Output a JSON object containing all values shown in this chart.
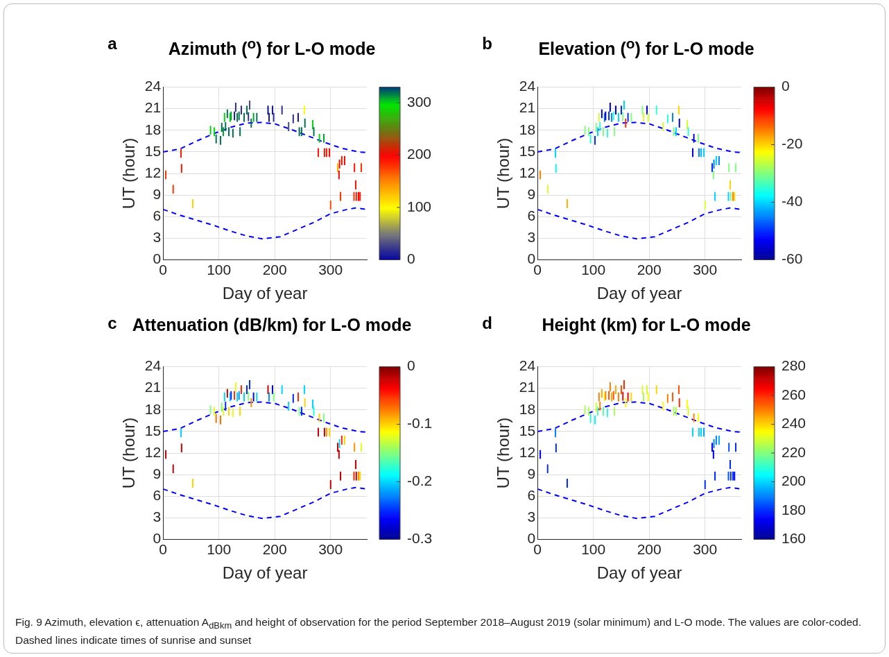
{
  "chart_data": [
    {
      "type": "bar",
      "title": "Azimuth ($^{o}$) for L-O mode",
      "xlabel": "Day of year",
      "ylabel": "UT (hour)",
      "annotations": [
        "a",
        "Fig. 9  Azimuth, elevation ϵ, attenuation A$_{dBkm}$ and height of observation for the period September 2018–August 2019 (solar minimum) and L-O mode. The values are color-coded. Dashed lines indicate times of sunrise and sunset"
      ],
      "xlim": [
        0,
        365
      ],
      "xticks": [
        0,
        100,
        200,
        300
      ],
      "ylim": [
        0,
        24
      ],
      "yticks": [
        0,
        3,
        6,
        9,
        12,
        15,
        18,
        21,
        24
      ],
      "grid": true,
      "legend": false,
      "clim": [
        0,
        330
      ],
      "cticks": [
        0,
        100,
        200,
        300
      ],
      "series": [
        {
          "x": [
            5,
            18,
            32,
            33,
            53,
            85,
            92,
            95,
            103,
            105,
            108,
            110,
            112,
            115,
            118,
            120,
            122,
            125,
            128,
            130,
            133,
            136,
            138,
            140,
            145,
            150,
            153,
            155,
            158,
            162,
            168,
            188,
            190,
            196,
            198,
            213,
            225,
            233,
            242,
            244,
            248,
            253,
            254,
            268,
            270,
            278,
            280,
            288,
            289,
            293,
            298,
            300,
            313,
            315,
            316,
            318,
            320,
            325,
            342,
            343,
            345,
            346,
            350,
            353,
            355
          ],
          "base": [
            11.2,
            9.2,
            14.2,
            12.1,
            7.2,
            17.4,
            17.2,
            16.2,
            16.0,
            17.8,
            17.2,
            19.2,
            17.9,
            19.7,
            17.2,
            19.2,
            19.4,
            17.0,
            19.4,
            20.6,
            19.2,
            19.4,
            17.2,
            20.2,
            19.2,
            20.2,
            19.3,
            20.9,
            18.4,
            19.2,
            19.2,
            20.2,
            19.2,
            20.2,
            19.2,
            20.2,
            17.9,
            19.0,
            19.2,
            17.2,
            17.2,
            20.2,
            18.4,
            18.2,
            17.2,
            14.3,
            16.3,
            16.3,
            14.3,
            14.3,
            14.3,
            7.0,
            12.2,
            11.2,
            12.7,
            8.2,
            13.2,
            13.2,
            8.2,
            12.2,
            9.8,
            8.2,
            8.2,
            8.2,
            12.2
          ],
          "values": [
            1.2,
            1.2,
            1.2,
            1.2,
            1.2,
            1.2,
            1.2,
            1.2,
            1.2,
            1.2,
            1.2,
            1.2,
            1.2,
            1.2,
            1.2,
            1.2,
            1.2,
            1.2,
            1.2,
            1.2,
            1.2,
            1.2,
            1.2,
            1.2,
            1.2,
            1.2,
            1.2,
            1.2,
            1.2,
            1.2,
            1.2,
            1.2,
            1.2,
            1.2,
            1.2,
            1.2,
            1.2,
            1.2,
            1.2,
            1.2,
            1.2,
            1.2,
            1.2,
            1.2,
            1.2,
            1.2,
            1.2,
            1.2,
            1.2,
            1.2,
            1.2,
            1.2,
            1.2,
            1.2,
            1.2,
            1.2,
            1.2,
            1.2,
            1.2,
            1.2,
            1.2,
            1.2,
            1.2,
            1.2,
            1.2
          ],
          "cvalues": [
            180,
            180,
            190,
            190,
            120,
            300,
            300,
            320,
            320,
            320,
            310,
            300,
            320,
            320,
            320,
            300,
            310,
            320,
            10,
            20,
            320,
            320,
            320,
            20,
            320,
            320,
            20,
            30,
            320,
            310,
            320,
            5,
            10,
            10,
            20,
            20,
            30,
            20,
            10,
            320,
            320,
            100,
            320,
            300,
            320,
            190,
            300,
            310,
            190,
            190,
            195,
            170,
            130,
            200,
            200,
            180,
            210,
            200,
            180,
            190,
            190,
            190,
            200,
            190,
            180
          ],
          "colors": [
            "#ff3300",
            "#ff3300",
            "#ff1700",
            "#ff1700",
            "#ffce00",
            "#00d60b",
            "#00d60b",
            "#006f54",
            "#006f54",
            "#006f54",
            "#00a32f",
            "#00d60b",
            "#006f54",
            "#006f54",
            "#006f54",
            "#00d60b",
            "#00a32f",
            "#006f54",
            "#181898",
            "#303090",
            "#006f54",
            "#006f54",
            "#006f54",
            "#303090",
            "#006f54",
            "#006f54",
            "#303090",
            "#494988",
            "#006f54",
            "#00a32f",
            "#006f54",
            "#0c0c9c",
            "#181898",
            "#181898",
            "#303090",
            "#303090",
            "#494988",
            "#303090",
            "#181898",
            "#006f54",
            "#006f54",
            "#fffd00",
            "#006f54",
            "#00d60b",
            "#006f54",
            "#ff1700",
            "#00d60b",
            "#00a32f",
            "#ff1700",
            "#ff1700",
            "#ff0800",
            "#ff4f00",
            "#ffb700",
            "#f90501",
            "#f90501",
            "#ff3300",
            "#dc1d05",
            "#f90501",
            "#ff3300",
            "#ff1700",
            "#ff1700",
            "#ff1700",
            "#f90501",
            "#ff1700",
            "#ff3300"
          ]
        },
        {
          "type": "line",
          "color": "#0000ff",
          "line_style": "dashed",
          "marker": "none",
          "x": [
            0,
            30,
            60,
            90,
            120,
            150,
            175,
            200,
            230,
            260,
            290,
            320,
            350,
            365
          ],
          "values": [
            15.0,
            15.4,
            16.5,
            17.5,
            18.4,
            19.0,
            19.1,
            18.9,
            18.1,
            17.2,
            16.3,
            15.5,
            15.0,
            14.9
          ]
        },
        {
          "type": "line",
          "color": "#0000ff",
          "line_style": "dashed",
          "marker": "none",
          "x": [
            0,
            30,
            60,
            90,
            120,
            150,
            178,
            210,
            240,
            270,
            300,
            330,
            345,
            365
          ],
          "values": [
            7.0,
            6.2,
            5.5,
            4.8,
            4.0,
            3.3,
            2.9,
            3.2,
            4.2,
            5.2,
            6.4,
            7.0,
            7.2,
            7.0
          ]
        }
      ]
    },
    {
      "type": "bar",
      "title": "Elevation ($^{o}$) for L-O mode",
      "xlabel": "Day of year",
      "ylabel": "UT (hour)",
      "annotations": [
        "b"
      ],
      "xlim": [
        0,
        365
      ],
      "xticks": [
        0,
        100,
        200,
        300
      ],
      "ylim": [
        0,
        24
      ],
      "yticks": [
        0,
        3,
        6,
        9,
        12,
        15,
        18,
        21,
        24
      ],
      "grid": true,
      "legend": false,
      "clim": [
        -60,
        0
      ],
      "cticks": [
        -60,
        -40,
        -20,
        0
      ],
      "series": [
        {
          "x": [
            5,
            18,
            32,
            33,
            53,
            85,
            92,
            95,
            103,
            105,
            108,
            110,
            112,
            115,
            118,
            120,
            122,
            125,
            128,
            130,
            133,
            136,
            138,
            140,
            145,
            150,
            153,
            155,
            158,
            162,
            168,
            188,
            190,
            196,
            198,
            213,
            225,
            233,
            242,
            244,
            248,
            253,
            254,
            268,
            270,
            278,
            280,
            288,
            289,
            293,
            298,
            300,
            313,
            315,
            316,
            318,
            320,
            325,
            342,
            343,
            345,
            346,
            350,
            353,
            355
          ],
          "base": [
            11.2,
            9.2,
            14.2,
            12.1,
            7.2,
            17.4,
            17.2,
            16.2,
            16.0,
            17.8,
            17.2,
            19.2,
            17.9,
            19.7,
            17.2,
            19.2,
            19.4,
            17.0,
            19.4,
            20.6,
            19.2,
            19.4,
            17.2,
            20.2,
            19.2,
            20.2,
            19.3,
            20.9,
            18.4,
            19.2,
            19.2,
            20.2,
            19.2,
            20.2,
            19.2,
            20.2,
            17.9,
            19.0,
            19.2,
            17.2,
            17.2,
            20.2,
            18.4,
            18.2,
            17.2,
            14.3,
            16.3,
            16.3,
            14.3,
            14.3,
            14.3,
            7.0,
            12.2,
            11.2,
            12.7,
            8.2,
            13.2,
            13.2,
            8.2,
            12.2,
            9.8,
            8.2,
            8.2,
            8.2,
            12.2
          ],
          "values": [
            1.2,
            1.2,
            1.2,
            1.2,
            1.2,
            1.2,
            1.2,
            1.2,
            1.2,
            1.2,
            1.2,
            1.2,
            1.2,
            1.2,
            1.2,
            1.2,
            1.2,
            1.2,
            1.2,
            1.2,
            1.2,
            1.2,
            1.2,
            1.2,
            1.2,
            1.2,
            1.2,
            1.2,
            1.2,
            1.2,
            1.2,
            1.2,
            1.2,
            1.2,
            1.2,
            1.2,
            1.2,
            1.2,
            1.2,
            1.2,
            1.2,
            1.2,
            1.2,
            1.2,
            1.2,
            1.2,
            1.2,
            1.2,
            1.2,
            1.2,
            1.2,
            1.2,
            1.2,
            1.2,
            1.2,
            1.2,
            1.2,
            1.2,
            1.2,
            1.2,
            1.2,
            1.2,
            1.2,
            1.2,
            1.2
          ],
          "cvalues": [
            -15,
            -25,
            -40,
            -37,
            -18,
            -30,
            -30,
            -35,
            -50,
            -30,
            -40,
            -25,
            -35,
            -55,
            -30,
            -45,
            -55,
            -35,
            -50,
            -55,
            -45,
            -35,
            -30,
            -55,
            -40,
            -50,
            -30,
            -40,
            -10,
            -50,
            -30,
            -30,
            -25,
            -55,
            -25,
            -35,
            -25,
            -35,
            -45,
            -30,
            -40,
            -20,
            -55,
            -25,
            -35,
            -55,
            -55,
            -30,
            -45,
            -42,
            -40,
            -25,
            -50,
            -30,
            -45,
            -40,
            -40,
            -45,
            -40,
            -30,
            -20,
            -30,
            -15,
            -20,
            -30
          ],
          "colors": [
            "#ff8000",
            "#d5ff2b",
            "#00d5ff",
            "#09fff7",
            "#ffb300",
            "#80ff80",
            "#80ff80",
            "#2bffd5",
            "#002bff",
            "#80ff80",
            "#00d5ff",
            "#d5ff2b",
            "#2bffd5",
            "#0000da",
            "#80ff80",
            "#0080ff",
            "#0000da",
            "#2bffd5",
            "#002bff",
            "#0000da",
            "#0080ff",
            "#2bffd5",
            "#80ff80",
            "#0000da",
            "#00d5ff",
            "#002bff",
            "#80ff80",
            "#00d5ff",
            "#ff2b00",
            "#002bff",
            "#80ff80",
            "#80ff80",
            "#d5ff2b",
            "#0000da",
            "#d5ff2b",
            "#2bffd5",
            "#d5ff2b",
            "#2bffd5",
            "#0080ff",
            "#80ff80",
            "#00d5ff",
            "#ffd500",
            "#0000da",
            "#d5ff2b",
            "#2bffd5",
            "#0000da",
            "#0000da",
            "#80ff80",
            "#0080ff",
            "#00b3ff",
            "#00d5ff",
            "#d5ff2b",
            "#002bff",
            "#80ff80",
            "#0080ff",
            "#00d5ff",
            "#00d5ff",
            "#0080ff",
            "#00d5ff",
            "#80ff80",
            "#ffd500",
            "#80ff80",
            "#ff8000",
            "#ffd500",
            "#80ff80"
          ]
        },
        {
          "type": "line",
          "color": "#0000ff",
          "line_style": "dashed",
          "marker": "none",
          "x": [
            0,
            30,
            60,
            90,
            120,
            150,
            175,
            200,
            230,
            260,
            290,
            320,
            350,
            365
          ],
          "values": [
            15.0,
            15.4,
            16.5,
            17.5,
            18.4,
            19.0,
            19.1,
            18.9,
            18.1,
            17.2,
            16.3,
            15.5,
            15.0,
            14.9
          ]
        },
        {
          "type": "line",
          "color": "#0000ff",
          "line_style": "dashed",
          "marker": "none",
          "x": [
            0,
            30,
            60,
            90,
            120,
            150,
            178,
            210,
            240,
            270,
            300,
            330,
            345,
            365
          ],
          "values": [
            7.0,
            6.2,
            5.5,
            4.8,
            4.0,
            3.3,
            2.9,
            3.2,
            4.2,
            5.2,
            6.4,
            7.0,
            7.2,
            7.0
          ]
        }
      ]
    },
    {
      "type": "bar",
      "title": "Attenuation (dB/km) for L-O mode",
      "xlabel": "Day of year",
      "ylabel": "UT (hour)",
      "annotations": [
        "c"
      ],
      "xlim": [
        0,
        365
      ],
      "xticks": [
        0,
        100,
        200,
        300
      ],
      "ylim": [
        0,
        24
      ],
      "yticks": [
        0,
        3,
        6,
        9,
        12,
        15,
        18,
        21,
        24
      ],
      "grid": true,
      "legend": false,
      "clim": [
        -0.3,
        0
      ],
      "cticks": [
        -0.3,
        -0.2,
        -0.1,
        0
      ],
      "series": [
        {
          "x": [
            5,
            18,
            32,
            33,
            53,
            85,
            92,
            95,
            103,
            105,
            108,
            110,
            112,
            115,
            118,
            120,
            122,
            125,
            128,
            130,
            133,
            136,
            138,
            140,
            145,
            150,
            153,
            155,
            158,
            162,
            168,
            188,
            190,
            196,
            198,
            213,
            225,
            233,
            242,
            244,
            248,
            253,
            254,
            268,
            270,
            278,
            280,
            288,
            289,
            293,
            298,
            300,
            313,
            315,
            316,
            318,
            320,
            325,
            342,
            343,
            345,
            346,
            350,
            353,
            355
          ],
          "base": [
            11.2,
            9.2,
            14.2,
            12.1,
            7.2,
            17.4,
            17.2,
            16.2,
            16.0,
            17.8,
            17.2,
            19.2,
            17.9,
            19.7,
            17.2,
            19.2,
            19.4,
            17.0,
            19.4,
            20.6,
            19.2,
            19.4,
            17.2,
            20.2,
            19.2,
            20.2,
            19.3,
            20.9,
            18.4,
            19.2,
            19.2,
            20.2,
            19.2,
            20.2,
            19.2,
            20.2,
            17.9,
            19.0,
            19.2,
            17.2,
            17.2,
            20.2,
            18.4,
            18.2,
            17.2,
            14.3,
            16.3,
            16.3,
            14.3,
            14.3,
            14.3,
            7.0,
            12.2,
            11.2,
            12.7,
            8.2,
            13.2,
            13.2,
            8.2,
            12.2,
            9.8,
            8.2,
            8.2,
            8.2,
            12.2
          ],
          "values": [
            1.2,
            1.2,
            1.2,
            1.2,
            1.2,
            1.2,
            1.2,
            1.2,
            1.2,
            1.2,
            1.2,
            1.2,
            1.2,
            1.2,
            1.2,
            1.2,
            1.2,
            1.2,
            1.2,
            1.2,
            1.2,
            1.2,
            1.2,
            1.2,
            1.2,
            1.2,
            1.2,
            1.2,
            1.2,
            1.2,
            1.2,
            1.2,
            1.2,
            1.2,
            1.2,
            1.2,
            1.2,
            1.2,
            1.2,
            1.2,
            1.2,
            1.2,
            1.2,
            1.2,
            1.2,
            1.2,
            1.2,
            1.2,
            1.2,
            1.2,
            1.2,
            1.2,
            1.2,
            1.2,
            1.2,
            1.2,
            1.2,
            1.2,
            1.2,
            1.2,
            1.2,
            1.2,
            1.2,
            1.2,
            1.2
          ],
          "cvalues": [
            -0.02,
            -0.02,
            -0.2,
            -0.02,
            -0.1,
            -0.15,
            -0.12,
            -0.07,
            -0.07,
            -0.15,
            -0.12,
            -0.2,
            -0.25,
            -0.02,
            -0.1,
            -0.2,
            -0.25,
            -0.12,
            -0.05,
            -0.12,
            -0.2,
            -0.22,
            -0.1,
            -0.05,
            -0.2,
            -0.25,
            -0.15,
            -0.25,
            -0.08,
            -0.28,
            -0.2,
            -0.02,
            -0.22,
            -0.28,
            -0.15,
            -0.2,
            -0.2,
            -0.25,
            -0.05,
            -0.15,
            -0.25,
            -0.2,
            -0.1,
            -0.2,
            -0.18,
            -0.02,
            -0.1,
            -0.15,
            -0.02,
            -0.08,
            -0.1,
            -0.02,
            -0.02,
            -0.02,
            -0.2,
            -0.02,
            -0.05,
            -0.1,
            -0.05,
            -0.08,
            -0.02,
            -0.02,
            -0.08,
            -0.1,
            -0.12
          ],
          "colors": [
            "#c40000",
            "#c40000",
            "#00d5ff",
            "#c40000",
            "#ffd500",
            "#80ff80",
            "#e6ff1a",
            "#ff6e00",
            "#ff6e00",
            "#80ff80",
            "#e6ff1a",
            "#00d5ff",
            "#002bff",
            "#c40000",
            "#ffd500",
            "#00d5ff",
            "#002bff",
            "#e6ff1a",
            "#ff2b00",
            "#e6ff1a",
            "#00d5ff",
            "#0091ff",
            "#ffd500",
            "#ff2b00",
            "#00d5ff",
            "#002bff",
            "#80ff80",
            "#002bff",
            "#ff9100",
            "#0000cb",
            "#00d5ff",
            "#c40000",
            "#0091ff",
            "#0000cb",
            "#80ff80",
            "#00d5ff",
            "#00d5ff",
            "#002bff",
            "#ff2b00",
            "#80ff80",
            "#002bff",
            "#00d5ff",
            "#ffd500",
            "#00d5ff",
            "#1affe6",
            "#c40000",
            "#ffd500",
            "#80ff80",
            "#c40000",
            "#ff9100",
            "#ffd500",
            "#c40000",
            "#c40000",
            "#c40000",
            "#00d5ff",
            "#c40000",
            "#ff2b00",
            "#ffd500",
            "#ff2b00",
            "#ff9100",
            "#c40000",
            "#c40000",
            "#ff9100",
            "#ffd500",
            "#e6ff1a"
          ]
        },
        {
          "type": "line",
          "color": "#0000ff",
          "line_style": "dashed",
          "marker": "none",
          "x": [
            0,
            30,
            60,
            90,
            120,
            150,
            175,
            200,
            230,
            260,
            290,
            320,
            350,
            365
          ],
          "values": [
            15.0,
            15.4,
            16.5,
            17.5,
            18.4,
            19.0,
            19.1,
            18.9,
            18.1,
            17.2,
            16.3,
            15.5,
            15.0,
            14.9
          ]
        },
        {
          "type": "line",
          "color": "#0000ff",
          "line_style": "dashed",
          "marker": "none",
          "x": [
            0,
            30,
            60,
            90,
            120,
            150,
            178,
            210,
            240,
            270,
            300,
            330,
            345,
            365
          ],
          "values": [
            7.0,
            6.2,
            5.5,
            4.8,
            4.0,
            3.3,
            2.9,
            3.2,
            4.2,
            5.2,
            6.4,
            7.0,
            7.2,
            7.0
          ]
        }
      ]
    },
    {
      "type": "bar",
      "title": "Height (km) for L-O mode",
      "xlabel": "Day of year",
      "ylabel": "UT (hour)",
      "annotations": [
        "d"
      ],
      "xlim": [
        0,
        365
      ],
      "xticks": [
        0,
        100,
        200,
        300
      ],
      "ylim": [
        0,
        24
      ],
      "yticks": [
        0,
        3,
        6,
        9,
        12,
        15,
        18,
        21,
        24
      ],
      "grid": true,
      "legend": false,
      "clim": [
        160,
        280
      ],
      "cticks": [
        160,
        180,
        200,
        220,
        240,
        260,
        280
      ],
      "series": [
        {
          "x": [
            5,
            18,
            32,
            33,
            53,
            85,
            92,
            95,
            103,
            105,
            108,
            110,
            112,
            115,
            118,
            120,
            122,
            125,
            128,
            130,
            133,
            136,
            138,
            140,
            145,
            150,
            153,
            155,
            158,
            162,
            168,
            188,
            190,
            196,
            198,
            213,
            225,
            233,
            242,
            244,
            248,
            253,
            254,
            268,
            270,
            278,
            280,
            288,
            289,
            293,
            298,
            300,
            313,
            315,
            316,
            318,
            320,
            325,
            342,
            343,
            345,
            346,
            350,
            353,
            355
          ],
          "base": [
            11.2,
            9.2,
            14.2,
            12.1,
            7.2,
            17.4,
            17.2,
            16.2,
            16.0,
            17.8,
            17.2,
            19.2,
            17.9,
            19.7,
            17.2,
            19.2,
            19.4,
            17.0,
            19.4,
            20.6,
            19.2,
            19.4,
            17.2,
            20.2,
            19.2,
            20.2,
            19.3,
            20.9,
            18.4,
            19.2,
            19.2,
            20.2,
            19.2,
            20.2,
            19.2,
            20.2,
            17.9,
            19.0,
            19.2,
            17.2,
            17.2,
            20.2,
            18.4,
            18.2,
            17.2,
            14.3,
            16.3,
            16.3,
            14.3,
            14.3,
            14.3,
            7.0,
            12.2,
            11.2,
            12.7,
            8.2,
            13.2,
            13.2,
            8.2,
            12.2,
            9.8,
            8.2,
            8.2,
            8.2,
            12.2
          ],
          "values": [
            1.2,
            1.2,
            1.2,
            1.2,
            1.2,
            1.2,
            1.2,
            1.2,
            1.2,
            1.2,
            1.2,
            1.2,
            1.2,
            1.2,
            1.2,
            1.2,
            1.2,
            1.2,
            1.2,
            1.2,
            1.2,
            1.2,
            1.2,
            1.2,
            1.2,
            1.2,
            1.2,
            1.2,
            1.2,
            1.2,
            1.2,
            1.2,
            1.2,
            1.2,
            1.2,
            1.2,
            1.2,
            1.2,
            1.2,
            1.2,
            1.2,
            1.2,
            1.2,
            1.2,
            1.2,
            1.2,
            1.2,
            1.2,
            1.2,
            1.2,
            1.2,
            1.2,
            1.2,
            1.2,
            1.2,
            1.2,
            1.2,
            1.2,
            1.2,
            1.2,
            1.2,
            1.2,
            1.2,
            1.2,
            1.2
          ],
          "cvalues": [
            175,
            180,
            190,
            180,
            180,
            225,
            225,
            210,
            205,
            230,
            215,
            250,
            250,
            245,
            215,
            235,
            250,
            210,
            255,
            250,
            245,
            255,
            225,
            245,
            250,
            255,
            265,
            260,
            235,
            265,
            240,
            230,
            225,
            230,
            235,
            240,
            235,
            250,
            255,
            225,
            225,
            255,
            260,
            235,
            230,
            200,
            250,
            235,
            200,
            200,
            195,
            180,
            175,
            175,
            190,
            180,
            190,
            195,
            185,
            185,
            180,
            180,
            180,
            175,
            180
          ],
          "colors": [
            "#0000ff",
            "#002bff",
            "#0080ff",
            "#002bff",
            "#002bff",
            "#aaff55",
            "#aaff55",
            "#2bffd5",
            "#00ffff",
            "#d5ff2b",
            "#55ffaa",
            "#ff8000",
            "#ff8000",
            "#ffaa00",
            "#55ffaa",
            "#ffff00",
            "#ff8000",
            "#2bffd5",
            "#ff5500",
            "#ff8000",
            "#ffaa00",
            "#ff5500",
            "#aaff55",
            "#ffaa00",
            "#ff8000",
            "#ff5500",
            "#ff0000",
            "#ff2b00",
            "#ffff00",
            "#ff0000",
            "#ffd500",
            "#d5ff2b",
            "#aaff55",
            "#d5ff2b",
            "#ffff00",
            "#ffd500",
            "#ffff00",
            "#ff8000",
            "#ff5500",
            "#aaff55",
            "#aaff55",
            "#ff5500",
            "#ff2b00",
            "#ffff00",
            "#d5ff2b",
            "#00d5ff",
            "#ff8000",
            "#ffff00",
            "#00d5ff",
            "#00d5ff",
            "#00aaff",
            "#002bff",
            "#0000ff",
            "#0000ff",
            "#0080ff",
            "#002bff",
            "#0080ff",
            "#00aaff",
            "#0055ff",
            "#0055ff",
            "#002bff",
            "#002bff",
            "#002bff",
            "#0000ff",
            "#002bff"
          ]
        },
        {
          "type": "line",
          "color": "#0000ff",
          "line_style": "dashed",
          "marker": "none",
          "x": [
            0,
            30,
            60,
            90,
            120,
            150,
            175,
            200,
            230,
            260,
            290,
            320,
            350,
            365
          ],
          "values": [
            15.0,
            15.4,
            16.5,
            17.5,
            18.4,
            19.0,
            19.1,
            18.9,
            18.1,
            17.2,
            16.3,
            15.5,
            15.0,
            14.9
          ]
        },
        {
          "type": "line",
          "color": "#0000ff",
          "line_style": "dashed",
          "marker": "none",
          "x": [
            0,
            30,
            60,
            90,
            120,
            150,
            178,
            210,
            240,
            270,
            300,
            330,
            345,
            365
          ],
          "values": [
            7.0,
            6.2,
            5.5,
            4.8,
            4.0,
            3.3,
            2.9,
            3.2,
            4.2,
            5.2,
            6.4,
            7.0,
            7.2,
            7.0
          ]
        }
      ]
    }
  ]
}
